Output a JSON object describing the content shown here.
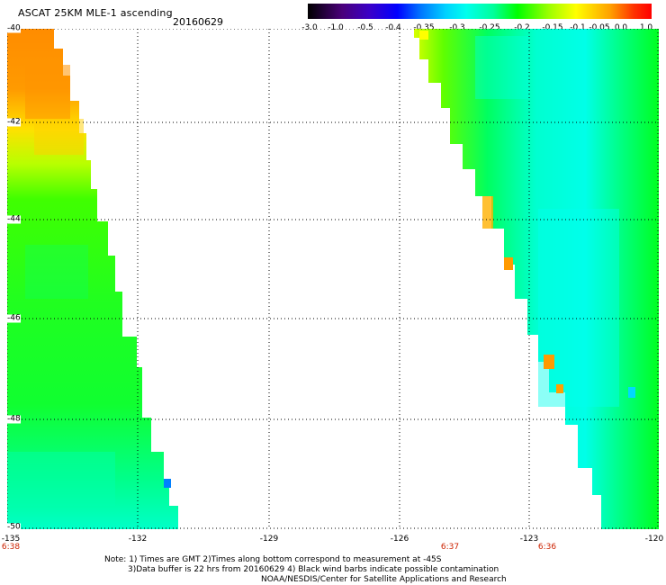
{
  "header": {
    "title": "ASCAT 25KM MLE-1 ascending",
    "date": "20160629"
  },
  "colorbar": {
    "labels": [
      "-3.0",
      "-1.0",
      "-0.5",
      "-0.4",
      "-0.35",
      "-0.3",
      "-0.25",
      "-0.2",
      "-0.15",
      "-0.1",
      "-0.05",
      "0.0",
      "1.0"
    ]
  },
  "map": {
    "lat_labels": [
      "-40",
      "-42",
      "-44",
      "-46",
      "-48",
      "-50"
    ],
    "lon_labels": [
      "-135",
      "-132",
      "-129",
      "-126",
      "-123",
      "-120"
    ],
    "time_labels": [
      "6:38",
      "6:37",
      "6:36"
    ]
  },
  "notes": {
    "line1": "Note: 1) Times are GMT 2)Times along bottom correspond to measurement at -45S",
    "line2": "3)Data buffer is 22 hrs from 20160629 4) Black wind barbs indicate possible contamination",
    "line3": "NOAA/NESDIS/Center for Satellite Applications and Research"
  },
  "colors": {
    "orange": "#ff8c00",
    "yellow": "#ffff00",
    "green": "#00ff00",
    "cyan": "#00ffee",
    "blue": "#0070ff"
  }
}
